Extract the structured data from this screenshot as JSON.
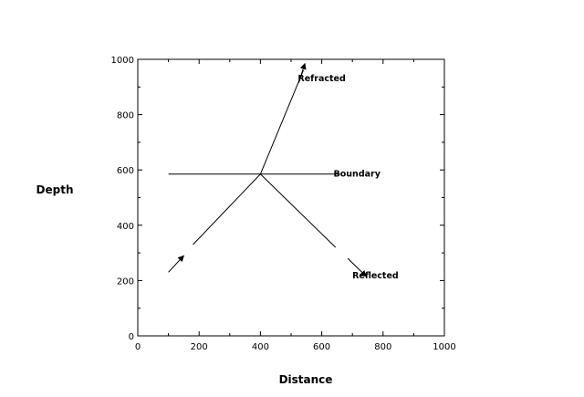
{
  "chart_data": {
    "type": "line",
    "xlabel": "Distance",
    "ylabel": "Depth",
    "xlim": [
      0,
      1000
    ],
    "ylim": [
      0,
      1000
    ],
    "xticks": [
      0,
      200,
      400,
      600,
      800,
      1000
    ],
    "yticks": [
      0,
      200,
      400,
      600,
      800,
      1000
    ],
    "grid": false,
    "series": [
      {
        "name": "",
        "role": "boundary",
        "points": [
          [
            100,
            585
          ],
          [
            660,
            585
          ]
        ]
      },
      {
        "name": "",
        "role": "incident-arrow",
        "points": [
          [
            100,
            230
          ],
          [
            150,
            290
          ]
        ],
        "arrow": "end"
      },
      {
        "name": "",
        "role": "incident-ray",
        "points": [
          [
            180,
            330
          ],
          [
            400,
            585
          ]
        ]
      },
      {
        "name": "",
        "role": "refracted-ray",
        "points": [
          [
            400,
            585
          ],
          [
            540,
            960
          ]
        ]
      },
      {
        "name": "",
        "role": "refracted-arrow",
        "points": [
          [
            525,
            915
          ],
          [
            545,
            985
          ]
        ],
        "arrow": "end"
      },
      {
        "name": "",
        "role": "reflected-ray",
        "points": [
          [
            400,
            585
          ],
          [
            645,
            320
          ]
        ]
      },
      {
        "name": "",
        "role": "reflected-arrow",
        "points": [
          [
            685,
            280
          ],
          [
            745,
            215
          ]
        ],
        "arrow": "end"
      }
    ],
    "annotations": [
      {
        "text": "Refracted",
        "x": 600,
        "y": 930
      },
      {
        "text": "Boundary",
        "x": 715,
        "y": 585
      },
      {
        "text": "Reflected",
        "x": 775,
        "y": 218
      }
    ]
  }
}
